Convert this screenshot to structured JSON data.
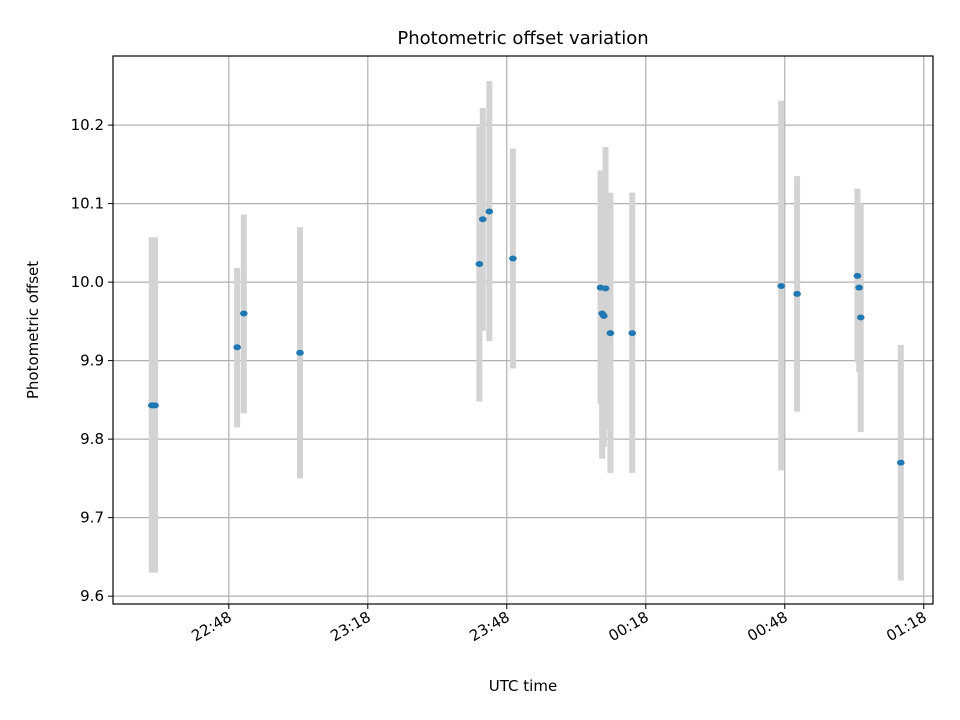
{
  "chart_data": {
    "type": "scatter",
    "title": "Photometric offset variation",
    "xlabel": "UTC time",
    "ylabel": "Photometric offset",
    "x_unit": "UTC time (HH:MM)",
    "xlim": [
      "22:23",
      "01:20"
    ],
    "ylim": [
      9.59,
      10.288
    ],
    "x_ticks": [
      "22:48",
      "23:18",
      "23:48",
      "00:18",
      "00:48",
      "01:18"
    ],
    "y_ticks": [
      9.6,
      9.7,
      9.8,
      9.9,
      10.0,
      10.1,
      10.2
    ],
    "y_tick_labels": [
      "9.6",
      "9.7",
      "9.8",
      "9.9",
      "10.0",
      "10.1",
      "10.2"
    ],
    "grid": true,
    "marker_color": "#1f77b4",
    "errorbar_color": "#d3d3d3",
    "points": [
      {
        "x": "22:31:22",
        "y": 9.843,
        "ylo": 9.63,
        "yhi": 10.057
      },
      {
        "x": "22:31:43",
        "y": 9.843,
        "ylo": 9.63,
        "yhi": 10.057
      },
      {
        "x": "22:32:05",
        "y": 9.843,
        "ylo": 9.63,
        "yhi": 10.057
      },
      {
        "x": "22:49:48",
        "y": 9.917,
        "ylo": 9.815,
        "yhi": 10.018
      },
      {
        "x": "22:51:14",
        "y": 9.96,
        "ylo": 9.833,
        "yhi": 10.086
      },
      {
        "x": "23:03:22",
        "y": 9.91,
        "ylo": 9.75,
        "yhi": 10.07
      },
      {
        "x": "23:42:05",
        "y": 10.023,
        "ylo": 9.848,
        "yhi": 10.198
      },
      {
        "x": "23:42:49",
        "y": 10.08,
        "ylo": 9.938,
        "yhi": 10.222
      },
      {
        "x": "23:44:14",
        "y": 10.09,
        "ylo": 9.925,
        "yhi": 10.256
      },
      {
        "x": "23:49:19",
        "y": 10.03,
        "ylo": 9.89,
        "yhi": 10.17
      },
      {
        "x": "00:08:14",
        "y": 9.993,
        "ylo": 9.845,
        "yhi": 10.142
      },
      {
        "x": "00:08:35",
        "y": 9.96,
        "ylo": 9.775,
        "yhi": 10.142
      },
      {
        "x": "00:08:57",
        "y": 9.957,
        "ylo": 9.79,
        "yhi": 10.125
      },
      {
        "x": "00:09:19",
        "y": 9.992,
        "ylo": 9.812,
        "yhi": 10.172
      },
      {
        "x": "00:10:22",
        "y": 9.935,
        "ylo": 9.757,
        "yhi": 10.114
      },
      {
        "x": "00:15:05",
        "y": 9.935,
        "ylo": 9.757,
        "yhi": 10.114
      },
      {
        "x": "00:47:14",
        "y": 9.995,
        "ylo": 9.76,
        "yhi": 10.231
      },
      {
        "x": "00:50:40",
        "y": 9.985,
        "ylo": 9.835,
        "yhi": 10.135
      },
      {
        "x": "01:03:41",
        "y": 10.008,
        "ylo": 9.898,
        "yhi": 10.119
      },
      {
        "x": "01:04:03",
        "y": 9.993,
        "ylo": 9.885,
        "yhi": 10.1
      },
      {
        "x": "01:04:24",
        "y": 9.955,
        "ylo": 9.809,
        "yhi": 10.1
      },
      {
        "x": "01:13:03",
        "y": 9.77,
        "ylo": 9.62,
        "yhi": 9.92
      }
    ]
  }
}
